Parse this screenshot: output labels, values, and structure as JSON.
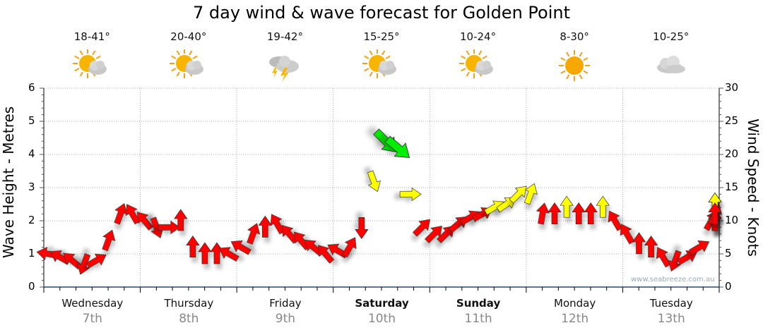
{
  "title": "7 day wind & wave forecast for Golden Point",
  "days": [
    {
      "name": "Wednesday",
      "date": "7th",
      "temp": "18-41°",
      "icon": "partly-cloudy-icon",
      "bold": false
    },
    {
      "name": "Thursday",
      "date": "8th",
      "temp": "20-40°",
      "icon": "partly-cloudy-icon",
      "bold": false
    },
    {
      "name": "Friday",
      "date": "9th",
      "temp": "19-42°",
      "icon": "thunderstorm-icon",
      "bold": false
    },
    {
      "name": "Saturday",
      "date": "10th",
      "temp": "15-25°",
      "icon": "partly-cloudy-icon",
      "bold": true
    },
    {
      "name": "Sunday",
      "date": "11th",
      "temp": "10-24°",
      "icon": "partly-cloudy-icon",
      "bold": true
    },
    {
      "name": "Monday",
      "date": "12th",
      "temp": "8-30°",
      "icon": "sunny-icon",
      "bold": false
    },
    {
      "name": "Tuesday",
      "date": "13th",
      "temp": "10-25°",
      "icon": "cloudy-icon",
      "bold": false
    }
  ],
  "watermark": "www.seabreeze.com.au",
  "colors": {
    "light": "#ff0000",
    "moderate": "#ffff00",
    "strong": "#00ee00"
  },
  "chart_data": {
    "type": "scatter",
    "title": "7 day wind & wave forecast for Golden Point",
    "ylabel": "Wave Height - Metres",
    "y2label": "Wind Speed - Knots",
    "ylim": [
      0,
      6
    ],
    "y2lim": [
      0,
      30
    ],
    "yticks": [
      "0",
      "1",
      "2",
      "3",
      "4",
      "5",
      "6"
    ],
    "y2ticks": [
      "0",
      "5",
      "10",
      "15",
      "20",
      "25",
      "30"
    ],
    "grid": true,
    "wind": [
      {
        "h": 0,
        "kt": 5,
        "dir": 280,
        "c": "light"
      },
      {
        "h": 3,
        "kt": 4.5,
        "dir": 300,
        "c": "light"
      },
      {
        "h": 6,
        "kt": 4,
        "dir": 310,
        "c": "light"
      },
      {
        "h": 9,
        "kt": 3.5,
        "dir": 200,
        "c": "light"
      },
      {
        "h": 12,
        "kt": 4,
        "dir": 60,
        "c": "light"
      },
      {
        "h": 15,
        "kt": 7,
        "dir": 20,
        "c": "light"
      },
      {
        "h": 18,
        "kt": 11,
        "dir": 20,
        "c": "light"
      },
      {
        "h": 21,
        "kt": 11,
        "dir": 330,
        "c": "light"
      },
      {
        "h": 24,
        "kt": 10,
        "dir": 320,
        "c": "light"
      },
      {
        "h": 27,
        "kt": 9,
        "dir": 160,
        "c": "light"
      },
      {
        "h": 30,
        "kt": 9,
        "dir": 90,
        "c": "light"
      },
      {
        "h": 33,
        "kt": 10,
        "dir": 0,
        "c": "light"
      },
      {
        "h": 36,
        "kt": 6,
        "dir": 0,
        "c": "light"
      },
      {
        "h": 39,
        "kt": 5,
        "dir": 0,
        "c": "light"
      },
      {
        "h": 42,
        "kt": 5,
        "dir": 0,
        "c": "light"
      },
      {
        "h": 45,
        "kt": 5,
        "dir": 300,
        "c": "light"
      },
      {
        "h": 48,
        "kt": 6,
        "dir": 300,
        "c": "light"
      },
      {
        "h": 51,
        "kt": 8,
        "dir": 20,
        "c": "light"
      },
      {
        "h": 54,
        "kt": 9,
        "dir": 0,
        "c": "light"
      },
      {
        "h": 57,
        "kt": 9.5,
        "dir": 330,
        "c": "light"
      },
      {
        "h": 60,
        "kt": 8,
        "dir": 320,
        "c": "light"
      },
      {
        "h": 63,
        "kt": 7,
        "dir": 320,
        "c": "light"
      },
      {
        "h": 66,
        "kt": 6,
        "dir": 310,
        "c": "light"
      },
      {
        "h": 69,
        "kt": 5,
        "dir": 320,
        "c": "light"
      },
      {
        "h": 72,
        "kt": 5.5,
        "dir": 300,
        "c": "light"
      },
      {
        "h": 75,
        "kt": 6,
        "dir": 30,
        "c": "light"
      },
      {
        "h": 78,
        "kt": 9,
        "dir": 180,
        "c": "light"
      },
      {
        "h": 81,
        "kt": 16,
        "dir": 160,
        "c": "moderate"
      },
      {
        "h": 84,
        "kt": 22,
        "dir": 135,
        "c": "strong"
      },
      {
        "h": 87,
        "kt": 21,
        "dir": 130,
        "c": "strong"
      },
      {
        "h": 90,
        "kt": 14,
        "dir": 90,
        "c": "moderate"
      },
      {
        "h": 93,
        "kt": 9,
        "dir": 45,
        "c": "light"
      },
      {
        "h": 96,
        "kt": 8,
        "dir": 45,
        "c": "light"
      },
      {
        "h": 99,
        "kt": 8,
        "dir": 45,
        "c": "light"
      },
      {
        "h": 102,
        "kt": 9.5,
        "dir": 50,
        "c": "light"
      },
      {
        "h": 105,
        "kt": 10.5,
        "dir": 60,
        "c": "light"
      },
      {
        "h": 108,
        "kt": 11,
        "dir": 60,
        "c": "light"
      },
      {
        "h": 111,
        "kt": 12,
        "dir": 60,
        "c": "moderate"
      },
      {
        "h": 114,
        "kt": 12.5,
        "dir": 55,
        "c": "moderate"
      },
      {
        "h": 117,
        "kt": 14,
        "dir": 45,
        "c": "moderate"
      },
      {
        "h": 120,
        "kt": 14,
        "dir": 20,
        "c": "moderate"
      },
      {
        "h": 123,
        "kt": 11,
        "dir": 10,
        "c": "light"
      },
      {
        "h": 126,
        "kt": 11,
        "dir": 0,
        "c": "light"
      },
      {
        "h": 129,
        "kt": 12,
        "dir": 0,
        "c": "moderate"
      },
      {
        "h": 132,
        "kt": 11,
        "dir": 0,
        "c": "light"
      },
      {
        "h": 135,
        "kt": 11,
        "dir": 0,
        "c": "light"
      },
      {
        "h": 138,
        "kt": 12,
        "dir": 0,
        "c": "moderate"
      },
      {
        "h": 141,
        "kt": 10,
        "dir": 330,
        "c": "light"
      },
      {
        "h": 144,
        "kt": 8,
        "dir": 330,
        "c": "light"
      },
      {
        "h": 147,
        "kt": 6.5,
        "dir": 0,
        "c": "light"
      },
      {
        "h": 150,
        "kt": 6,
        "dir": 0,
        "c": "light"
      },
      {
        "h": 153,
        "kt": 4.5,
        "dir": 330,
        "c": "light"
      },
      {
        "h": 156,
        "kt": 4,
        "dir": 200,
        "c": "light"
      },
      {
        "h": 159,
        "kt": 4.5,
        "dir": 60,
        "c": "light"
      },
      {
        "h": 162,
        "kt": 6,
        "dir": 60,
        "c": "light"
      },
      {
        "h": 165,
        "kt": 10,
        "dir": 30,
        "c": "light"
      },
      {
        "h": 168,
        "kt": 10,
        "dir": 0,
        "c": "light"
      },
      {
        "h": 171,
        "kt": 10,
        "dir": 0,
        "c": "light"
      },
      {
        "h": 174,
        "kt": 10,
        "dir": 0,
        "c": "light"
      },
      {
        "h": 177,
        "kt": 10,
        "dir": 0,
        "c": "light"
      },
      {
        "h": 180,
        "kt": 11,
        "dir": 20,
        "c": "light"
      },
      {
        "h": 183,
        "kt": 12.5,
        "dir": 0,
        "c": "moderate"
      },
      {
        "h": 186,
        "kt": 12.5,
        "dir": 0,
        "c": "moderate"
      },
      {
        "h": 189,
        "kt": 11,
        "dir": 0,
        "c": "light"
      }
    ]
  }
}
